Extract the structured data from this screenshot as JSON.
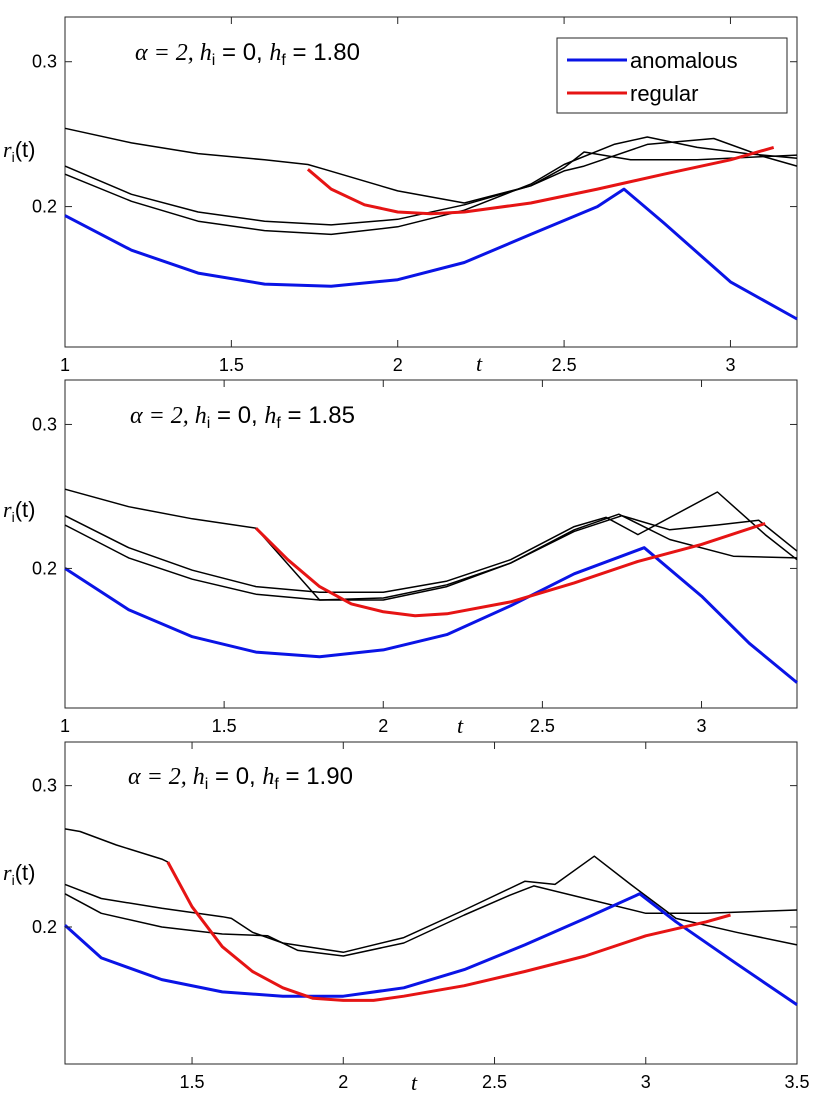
{
  "colors": {
    "anomalous": "#0a14e6",
    "regular": "#e61414",
    "other": "#000000",
    "axes": "#262626"
  },
  "legend": {
    "anomalous_label": "anomalous",
    "regular_label": "regular"
  },
  "chart_data": [
    {
      "type": "line",
      "title": "α = 2, h_i = 0, h_f = 1.80",
      "title_parts": {
        "alpha": "α = 2, ",
        "hi": "h",
        "hi_sub": "i",
        "hi_val": " = 0, ",
        "hf": "h",
        "hf_sub": "f",
        "hf_val": " = 1.80"
      },
      "xlabel": "t",
      "ylabel": "r_i(t)",
      "ylabel_parts": {
        "r": "r",
        "sub": "i",
        "arg": "(t)"
      },
      "yscale": "log",
      "xlim": [
        1.0,
        3.2
      ],
      "ylim": [
        0.135,
        0.34
      ],
      "xticks": [
        1,
        1.5,
        2,
        2.5,
        3
      ],
      "xtick_labels": [
        "1",
        "1.5",
        "2",
        "2.5",
        "3"
      ],
      "yticks": [
        0.2,
        0.3
      ],
      "ytick_labels": [
        "0.2",
        "0.3"
      ],
      "series": [
        {
          "name": "black-top",
          "color_key": "other",
          "width": 1.5,
          "x": [
            1.0,
            1.2,
            1.4,
            1.6,
            1.73,
            1.78,
            2.0,
            2.2,
            2.4,
            2.5,
            2.56,
            2.7,
            2.9,
            3.1,
            3.2
          ],
          "y": [
            0.249,
            0.239,
            0.232,
            0.228,
            0.225,
            0.222,
            0.209,
            0.202,
            0.212,
            0.223,
            0.233,
            0.228,
            0.228,
            0.23,
            0.231
          ]
        },
        {
          "name": "black-middle",
          "color_key": "other",
          "width": 1.5,
          "x": [
            1.0,
            1.2,
            1.4,
            1.6,
            1.8,
            2.0,
            2.2,
            2.4,
            2.5,
            2.56,
            2.75,
            2.95,
            3.1,
            3.2
          ],
          "y": [
            0.224,
            0.207,
            0.197,
            0.192,
            0.19,
            0.193,
            0.201,
            0.212,
            0.221,
            0.224,
            0.238,
            0.242,
            0.23,
            0.224
          ]
        },
        {
          "name": "black-lower",
          "color_key": "other",
          "width": 1.5,
          "x": [
            1.0,
            1.2,
            1.4,
            1.6,
            1.8,
            2.0,
            2.2,
            2.4,
            2.5,
            2.65,
            2.75,
            2.9,
            3.05,
            3.2
          ],
          "y": [
            0.219,
            0.203,
            0.192,
            0.187,
            0.185,
            0.189,
            0.198,
            0.213,
            0.225,
            0.238,
            0.243,
            0.236,
            0.232,
            0.229
          ]
        },
        {
          "name": "anomalous",
          "color_key": "anomalous",
          "width": 3,
          "x": [
            1.0,
            1.2,
            1.4,
            1.6,
            1.8,
            2.0,
            2.2,
            2.4,
            2.6,
            2.68,
            2.8,
            3.0,
            3.2
          ],
          "y": [
            0.195,
            0.177,
            0.166,
            0.161,
            0.16,
            0.163,
            0.171,
            0.185,
            0.2,
            0.21,
            0.191,
            0.162,
            0.146
          ]
        },
        {
          "name": "regular",
          "color_key": "regular",
          "width": 3,
          "x": [
            1.73,
            1.8,
            1.9,
            2.0,
            2.1,
            2.2,
            2.4,
            2.6,
            2.8,
            3.0,
            3.13
          ],
          "y": [
            0.222,
            0.21,
            0.201,
            0.197,
            0.196,
            0.197,
            0.202,
            0.21,
            0.219,
            0.228,
            0.236
          ]
        }
      ],
      "legend_entries": [
        "anomalous",
        "regular"
      ]
    },
    {
      "type": "line",
      "title": "α = 2, h_i = 0, h_f = 1.85",
      "title_parts": {
        "alpha": "α = 2, ",
        "hi": "h",
        "hi_sub": "i",
        "hi_val": " = 0, ",
        "hf": "h",
        "hf_sub": "f",
        "hf_val": " = 1.85"
      },
      "xlabel": "t",
      "ylabel": "r_i(t)",
      "ylabel_parts": {
        "r": "r",
        "sub": "i",
        "arg": "(t)"
      },
      "yscale": "log",
      "xlim": [
        1.0,
        3.3
      ],
      "ylim": [
        0.135,
        0.34
      ],
      "xticks": [
        1,
        1.5,
        2,
        2.5,
        3
      ],
      "xtick_labels": [
        "1",
        "1.5",
        "2",
        "2.5",
        "3"
      ],
      "yticks": [
        0.2,
        0.3
      ],
      "ytick_labels": [
        "0.2",
        "0.3"
      ],
      "series": [
        {
          "name": "black-top",
          "color_key": "other",
          "width": 1.5,
          "x": [
            1.0,
            1.2,
            1.4,
            1.6,
            1.8,
            2.0,
            2.2,
            2.4,
            2.6,
            2.74,
            2.9,
            3.1,
            3.3
          ],
          "y": [
            0.25,
            0.238,
            0.23,
            0.224,
            0.183,
            0.183,
            0.19,
            0.203,
            0.223,
            0.233,
            0.217,
            0.207,
            0.206
          ]
        },
        {
          "name": "black-middle",
          "color_key": "other",
          "width": 1.5,
          "x": [
            1.0,
            1.2,
            1.4,
            1.6,
            1.8,
            2.0,
            2.2,
            2.4,
            2.6,
            2.7,
            2.8,
            3.05,
            3.2,
            3.3
          ],
          "y": [
            0.232,
            0.212,
            0.199,
            0.19,
            0.187,
            0.187,
            0.193,
            0.205,
            0.225,
            0.231,
            0.22,
            0.248,
            0.22,
            0.205
          ]
        },
        {
          "name": "black-lower",
          "color_key": "other",
          "width": 1.5,
          "x": [
            1.0,
            1.2,
            1.4,
            1.6,
            1.8,
            2.0,
            2.2,
            2.4,
            2.6,
            2.75,
            2.9,
            3.05,
            3.18,
            3.3
          ],
          "y": [
            0.226,
            0.206,
            0.194,
            0.186,
            0.183,
            0.184,
            0.191,
            0.203,
            0.222,
            0.232,
            0.223,
            0.226,
            0.229,
            0.21
          ]
        },
        {
          "name": "anomalous",
          "color_key": "anomalous",
          "width": 3,
          "x": [
            1.0,
            1.2,
            1.4,
            1.6,
            1.8,
            2.0,
            2.2,
            2.4,
            2.6,
            2.82,
            3.0,
            3.15,
            3.3
          ],
          "y": [
            0.2,
            0.178,
            0.165,
            0.158,
            0.156,
            0.159,
            0.166,
            0.18,
            0.197,
            0.212,
            0.185,
            0.162,
            0.145
          ]
        },
        {
          "name": "regular",
          "color_key": "regular",
          "width": 3,
          "x": [
            1.6,
            1.7,
            1.8,
            1.9,
            2.0,
            2.1,
            2.2,
            2.4,
            2.6,
            2.8,
            3.0,
            3.2
          ],
          "y": [
            0.224,
            0.205,
            0.19,
            0.181,
            0.177,
            0.175,
            0.176,
            0.182,
            0.192,
            0.204,
            0.214,
            0.227
          ]
        }
      ]
    },
    {
      "type": "line",
      "title": "α = 2, h_i = 0, h_f = 1.90",
      "title_parts": {
        "alpha": "α = 2, ",
        "hi": "h",
        "hi_sub": "i",
        "hi_val": " = 0, ",
        "hf": "h",
        "hf_sub": "f",
        "hf_val": " = 1.90"
      },
      "xlabel": "t",
      "ylabel": "r_i(t)",
      "ylabel_parts": {
        "r": "r",
        "sub": "i",
        "arg": "(t)"
      },
      "yscale": "log",
      "xlim": [
        1.08,
        3.5
      ],
      "ylim": [
        0.135,
        0.34
      ],
      "xticks": [
        1.5,
        2,
        2.5,
        3,
        3.5
      ],
      "xtick_labels": [
        "1.5",
        "2",
        "2.5",
        "3",
        "3.5"
      ],
      "yticks": [
        0.2,
        0.3
      ],
      "ytick_labels": [
        "0.2",
        "0.3"
      ],
      "series": [
        {
          "name": "black-top",
          "color_key": "other",
          "width": 1.5,
          "x": [
            1.08,
            1.13,
            1.25,
            1.4,
            1.42
          ],
          "y": [
            0.265,
            0.263,
            0.253,
            0.243,
            0.241
          ]
        },
        {
          "name": "black-second",
          "color_key": "other",
          "width": 1.5,
          "x": [
            1.08,
            1.2,
            1.4,
            1.6,
            1.63,
            1.7,
            1.8,
            2.0,
            2.2,
            2.4,
            2.6,
            2.7,
            2.83,
            2.95,
            3.1,
            3.3,
            3.5
          ],
          "y": [
            0.226,
            0.217,
            0.211,
            0.206,
            0.205,
            0.197,
            0.191,
            0.186,
            0.194,
            0.21,
            0.228,
            0.226,
            0.245,
            0.226,
            0.205,
            0.197,
            0.19
          ]
        },
        {
          "name": "black-third",
          "color_key": "other",
          "width": 1.5,
          "x": [
            1.08,
            1.2,
            1.4,
            1.6,
            1.75,
            1.85,
            2.0,
            2.2,
            2.4,
            2.55,
            2.63,
            2.8,
            3.0,
            3.2,
            3.5
          ],
          "y": [
            0.22,
            0.208,
            0.2,
            0.196,
            0.195,
            0.187,
            0.184,
            0.191,
            0.207,
            0.219,
            0.225,
            0.217,
            0.208,
            0.208,
            0.21
          ]
        },
        {
          "name": "anomalous",
          "color_key": "anomalous",
          "width": 3,
          "x": [
            1.08,
            1.2,
            1.4,
            1.6,
            1.8,
            2.0,
            2.2,
            2.4,
            2.6,
            2.8,
            2.98,
            3.1,
            3.3,
            3.5
          ],
          "y": [
            0.201,
            0.183,
            0.172,
            0.166,
            0.164,
            0.164,
            0.168,
            0.177,
            0.19,
            0.205,
            0.22,
            0.203,
            0.18,
            0.16
          ]
        },
        {
          "name": "regular",
          "color_key": "regular",
          "width": 3,
          "x": [
            1.42,
            1.5,
            1.6,
            1.7,
            1.8,
            1.9,
            2.0,
            2.1,
            2.2,
            2.4,
            2.6,
            2.8,
            3.0,
            3.2,
            3.28
          ],
          "y": [
            0.241,
            0.212,
            0.189,
            0.176,
            0.168,
            0.163,
            0.162,
            0.162,
            0.164,
            0.169,
            0.176,
            0.184,
            0.195,
            0.203,
            0.207
          ]
        }
      ]
    }
  ]
}
